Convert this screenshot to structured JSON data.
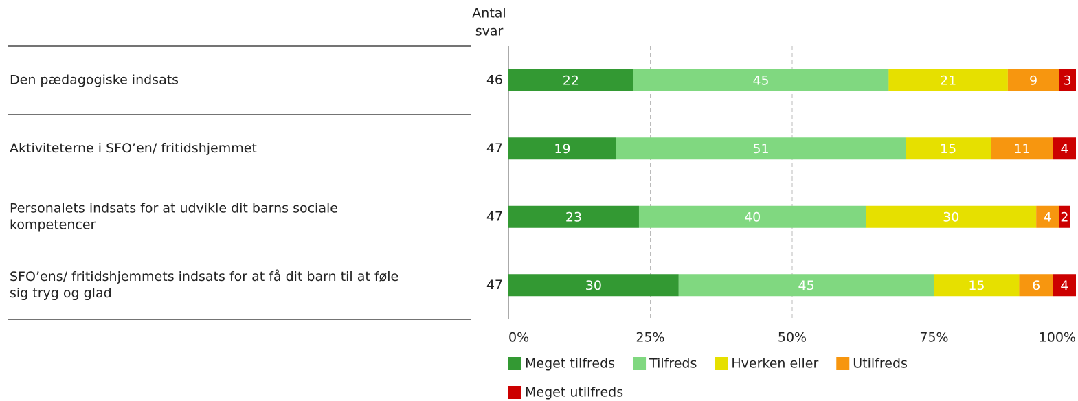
{
  "chart_data": {
    "type": "stacked_bar_horizontal",
    "count_label": [
      "Antal",
      "svar"
    ],
    "categories": [
      [
        "Den pædagogiske indsats"
      ],
      [
        "Aktiviteterne i SFO’en/ fritidshjemmet"
      ],
      [
        "Personalets indsats for at udvikle dit barns sociale",
        "kompetencer"
      ],
      [
        "SFO’ens/ fritidshjemmets indsats for at få dit barn til at føle",
        "sig tryg og glad"
      ]
    ],
    "counts": [
      46,
      47,
      47,
      47
    ],
    "series": [
      {
        "name": "Meget tilfreds",
        "color": "#339933",
        "values": [
          22,
          19,
          23,
          30
        ]
      },
      {
        "name": "Tilfreds",
        "color": "#80d880",
        "values": [
          45,
          51,
          40,
          45
        ]
      },
      {
        "name": "Hverken eller",
        "color": "#e6e000",
        "values": [
          21,
          15,
          30,
          15
        ]
      },
      {
        "name": "Utilfreds",
        "color": "#f7960f",
        "values": [
          9,
          11,
          4,
          6
        ]
      },
      {
        "name": "Meget utilfreds",
        "color": "#cc0000",
        "values": [
          3,
          4,
          2,
          4
        ]
      }
    ],
    "xlim": [
      0,
      100
    ],
    "xticks": [
      {
        "value": 0,
        "label": "0%"
      },
      {
        "value": 25,
        "label": "25%"
      },
      {
        "value": 50,
        "label": "50%"
      },
      {
        "value": 75,
        "label": "75%"
      },
      {
        "value": 100,
        "label": "100%"
      }
    ],
    "grid": true
  }
}
